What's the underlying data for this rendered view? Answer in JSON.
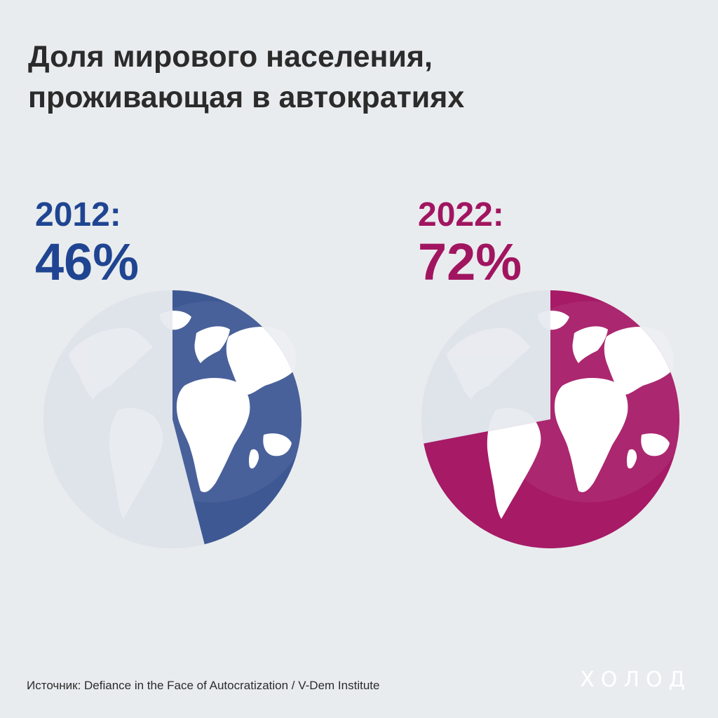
{
  "title": {
    "line1": "Доля мирового населения,",
    "line2": "проживающая в автократиях"
  },
  "chart_data": {
    "type": "pie",
    "series": [
      {
        "year_label": "2012:",
        "value_label": "46%",
        "value": 46,
        "color": "#3e5894",
        "text_color": "#1f4592"
      },
      {
        "year_label": "2022:",
        "value_label": "72%",
        "value": 72,
        "color": "#a61a66",
        "text_color": "#a11560"
      }
    ],
    "remainder_color": "#dfe3ea"
  },
  "source": "Источник: Defiance in the Face of Autocratization / V-Dem Institute",
  "brand": "ХОЛОД"
}
